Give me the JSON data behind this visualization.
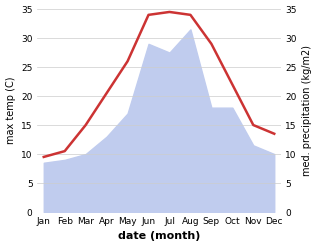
{
  "months": [
    "Jan",
    "Feb",
    "Mar",
    "Apr",
    "May",
    "Jun",
    "Jul",
    "Aug",
    "Sep",
    "Oct",
    "Nov",
    "Dec"
  ],
  "temperature": [
    9.5,
    10.5,
    15.0,
    20.5,
    26.0,
    34.0,
    34.5,
    34.0,
    29.0,
    22.0,
    15.0,
    13.5
  ],
  "precipitation": [
    8.5,
    9.0,
    10.0,
    13.0,
    17.0,
    29.0,
    27.5,
    31.5,
    18.0,
    18.0,
    11.5,
    10.0
  ],
  "temp_color": "#cc3333",
  "precip_color": "#c0ccee",
  "ylim": [
    0,
    35
  ],
  "yticks": [
    0,
    5,
    10,
    15,
    20,
    25,
    30,
    35
  ],
  "ylabel_left": "max temp (C)",
  "ylabel_right": "med. precipitation (kg/m2)",
  "xlabel": "date (month)",
  "temp_linewidth": 1.8,
  "background_color": "#ffffff",
  "grid_color": "#cccccc",
  "label_fontsize": 7,
  "xlabel_fontsize": 8,
  "tick_fontsize": 6.5
}
